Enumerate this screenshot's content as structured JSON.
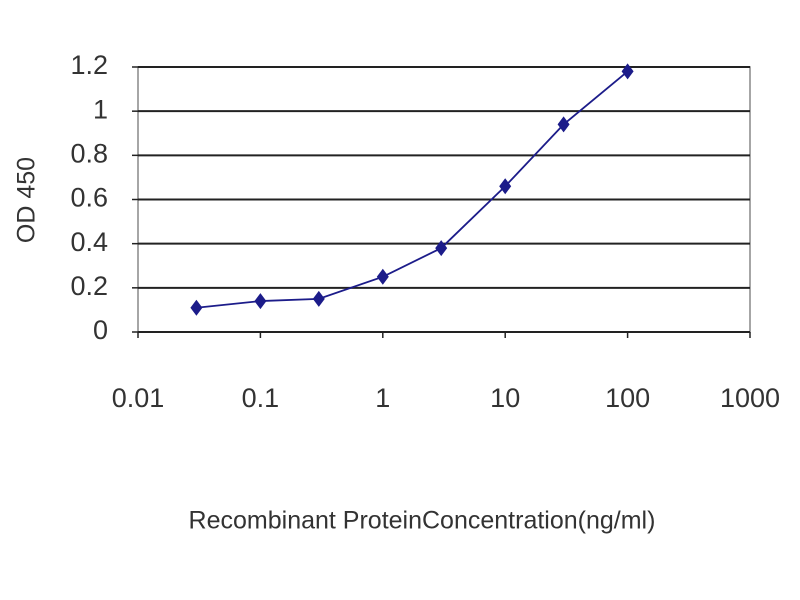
{
  "chart_data": {
    "type": "line",
    "x_label": "Recombinant ProteinConcentration(ng/ml)",
    "y_label": "OD 450",
    "x": [
      0.03,
      0.1,
      0.3,
      1,
      3,
      10,
      30,
      100
    ],
    "series": [
      {
        "color": "#1c1c8a",
        "values": [
          0.11,
          0.14,
          0.15,
          0.25,
          0.38,
          0.66,
          0.94,
          1.18
        ]
      }
    ],
    "xscale": "log",
    "xlim": [
      0.01,
      1000
    ],
    "xticks": [
      0.01,
      0.1,
      1,
      10,
      100,
      1000
    ],
    "ylim": [
      0,
      1.2
    ],
    "yticks": [
      0,
      0.2,
      0.4,
      0.6,
      0.8,
      1,
      1.2
    ],
    "grid": true
  }
}
